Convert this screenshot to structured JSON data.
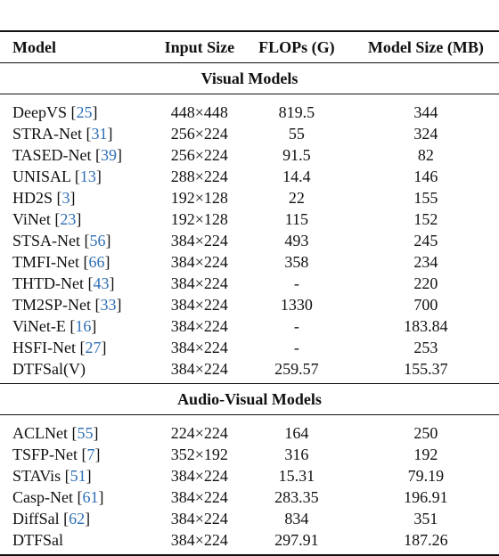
{
  "headers": {
    "model": "Model",
    "input_size": "Input Size",
    "flops": "FLOPs (G)",
    "model_size": "Model Size (MB)"
  },
  "sections": [
    {
      "title": "Visual Models",
      "rows": [
        {
          "model": "DeepVS",
          "ref": "25",
          "input": "448×448",
          "flops": "819.5",
          "size": "344"
        },
        {
          "model": "STRA-Net",
          "ref": "31",
          "input": "256×224",
          "flops": "55",
          "size": "324"
        },
        {
          "model": "TASED-Net",
          "ref": "39",
          "input": "256×224",
          "flops": "91.5",
          "size": "82"
        },
        {
          "model": "UNISAL",
          "ref": "13",
          "input": "288×224",
          "flops": "14.4",
          "size": "146"
        },
        {
          "model": "HD2S",
          "ref": "3",
          "input": "192×128",
          "flops": "22",
          "size": "155"
        },
        {
          "model": "ViNet",
          "ref": "23",
          "input": "192×128",
          "flops": "115",
          "size": "152"
        },
        {
          "model": "STSA-Net",
          "ref": "56",
          "input": "384×224",
          "flops": "493",
          "size": "245"
        },
        {
          "model": "TMFI-Net",
          "ref": "66",
          "input": "384×224",
          "flops": "358",
          "size": "234"
        },
        {
          "model": "THTD-Net",
          "ref": "43",
          "input": "384×224",
          "flops": "-",
          "size": "220"
        },
        {
          "model": "TM2SP-Net",
          "ref": "33",
          "input": "384×224",
          "flops": "1330",
          "size": "700"
        },
        {
          "model": "ViNet-E",
          "ref": "16",
          "input": "384×224",
          "flops": "-",
          "size": "183.84"
        },
        {
          "model": "HSFI-Net",
          "ref": "27",
          "input": "384×224",
          "flops": "-",
          "size": "253"
        },
        {
          "model": "DTFSal(V)",
          "ref": "",
          "input": "384×224",
          "flops": "259.57",
          "size": "155.37"
        }
      ]
    },
    {
      "title": "Audio-Visual Models",
      "rows": [
        {
          "model": "ACLNet",
          "ref": "55",
          "input": "224×224",
          "flops": "164",
          "size": "250"
        },
        {
          "model": "TSFP-Net",
          "ref": "7",
          "input": "352×192",
          "flops": "316",
          "size": "192"
        },
        {
          "model": "STAVis",
          "ref": "51",
          "input": "384×224",
          "flops": "15.31",
          "size": "79.19"
        },
        {
          "model": "Casp-Net",
          "ref": "61",
          "input": "384×224",
          "flops": "283.35",
          "size": "196.91"
        },
        {
          "model": "DiffSal",
          "ref": "62",
          "input": "384×224",
          "flops": "834",
          "size": "351"
        },
        {
          "model": "DTFSal",
          "ref": "",
          "input": "384×224",
          "flops": "297.91",
          "size": "187.26"
        }
      ]
    }
  ]
}
